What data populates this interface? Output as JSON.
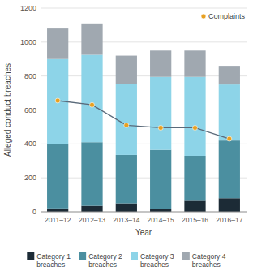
{
  "chart_data": {
    "type": "bar",
    "stacked": true,
    "x_label": "Year",
    "y_label": "Alleged conduct breaches",
    "categories": [
      "2011–12",
      "2012–13",
      "2013–14",
      "2014–15",
      "2015–16",
      "2016–17"
    ],
    "series": [
      {
        "name": "Category 1\nbreaches",
        "color": "#1c2b36",
        "values": [
          20,
          35,
          50,
          15,
          65,
          80
        ]
      },
      {
        "name": "Category 2\nbreaches",
        "color": "#4b8fa0",
        "values": [
          380,
          375,
          285,
          350,
          265,
          340
        ]
      },
      {
        "name": "Category 3\nbreaches",
        "color": "#8dd4e8",
        "values": [
          500,
          515,
          420,
          430,
          465,
          330
        ]
      },
      {
        "name": "Category 4\nbreaches",
        "color": "#a0a8b0",
        "values": [
          180,
          185,
          165,
          155,
          155,
          110
        ]
      },
      {
        "name": "Complaints",
        "type": "line",
        "marker": "circle",
        "color": "#5a6a7a",
        "colors": [
          "#e8a020",
          "#e8a020",
          "#e8a020",
          "#e8a020",
          "#e8a020",
          "#e8a020"
        ],
        "values": [
          655,
          630,
          510,
          495,
          495,
          430
        ]
      }
    ],
    "ylim": [
      0,
      1200
    ],
    "yticks": [
      0,
      200,
      400,
      600,
      800,
      1000,
      1200
    ],
    "grid": true,
    "legend": "upper right"
  }
}
